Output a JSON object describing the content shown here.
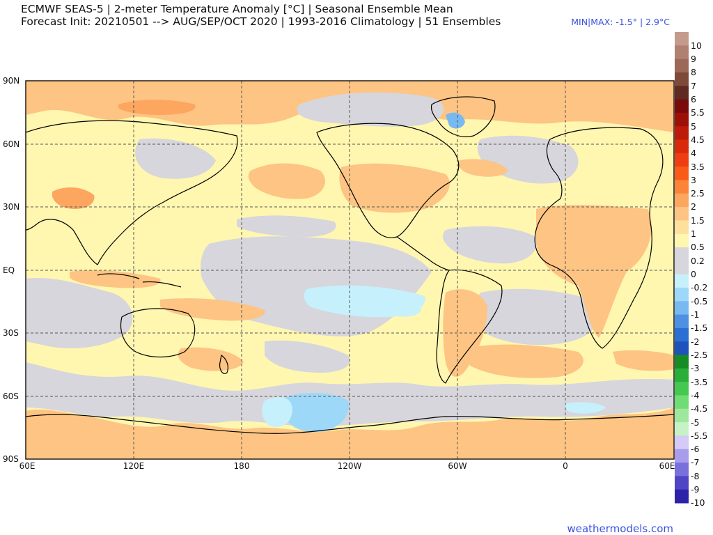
{
  "header": {
    "line1": "ECMWF SEAS-5 | 2-meter Temperature Anomaly [°C] | Seasonal Ensemble Mean",
    "line2": "Forecast Init: 20210501 --> AUG/SEP/OCT 2020  | 1993-2016 Climatology | 51 Ensembles",
    "minmax": "MIN|MAX: -1.5° | 2.9°C"
  },
  "axes": {
    "lat_labels": [
      "90N",
      "60N",
      "30N",
      "EQ",
      "30S",
      "60S",
      "90S"
    ],
    "lon_labels": [
      "60E",
      "120E",
      "180",
      "120W",
      "60W",
      "0",
      "60E"
    ]
  },
  "colorbar": {
    "levels": [
      "10",
      "9",
      "8",
      "7",
      "6",
      "5.5",
      "5",
      "4.5",
      "4",
      "3.5",
      "3",
      "2.5",
      "2",
      "1.5",
      "1",
      "0.5",
      "0.2",
      "0",
      "-0.2",
      "-0.5",
      "-1",
      "-1.5",
      "-2",
      "-2.5",
      "-3",
      "-3.5",
      "-4",
      "-4.5",
      "-5",
      "-5.5",
      "-6",
      "-7",
      "-8",
      "-9",
      "-10"
    ],
    "colors": [
      "#c49a8c",
      "#b08070",
      "#9c6858",
      "#7e4a3a",
      "#5e2a22",
      "#7a0a0a",
      "#9c1008",
      "#bd1a0a",
      "#d82a0a",
      "#ee3d10",
      "#fa5a18",
      "#fb8438",
      "#fca660",
      "#fdc483",
      "#fde09b",
      "#fff6b0",
      "#d6d6dc",
      "#d6d6dc",
      "#c6f0fb",
      "#9ed8f8",
      "#78b9f2",
      "#4e90e2",
      "#2c6fd4",
      "#1e53bb",
      "#168c24",
      "#2aae3a",
      "#45c850",
      "#70dc74",
      "#9ee89e",
      "#c6f2c6",
      "#d6caf6",
      "#a89cec",
      "#7a70dc",
      "#5046c4",
      "#2e22a8"
    ]
  },
  "watermark": "weathermodels.com",
  "map": {
    "background": "#fff6b0",
    "land_line": "#000000",
    "grid_line": "#555555",
    "neutral": "#d6d6dc",
    "warm1": "#fdc483",
    "warm2": "#fca660",
    "warm3": "#fb8438",
    "cool1": "#c6f0fb",
    "cool2": "#9ed8f8",
    "cool3": "#78b9f2"
  }
}
